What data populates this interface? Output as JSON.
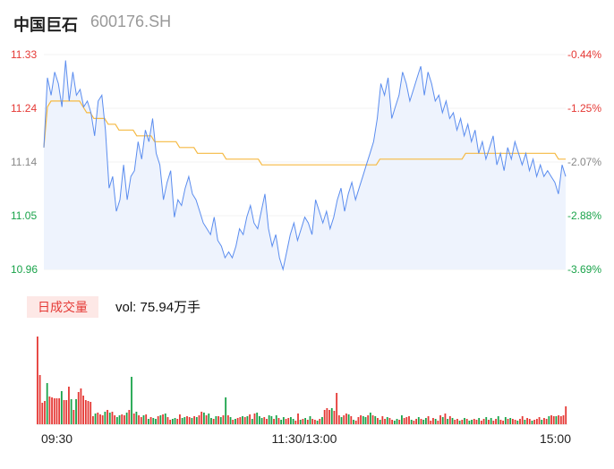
{
  "header": {
    "name": "中国巨石",
    "code": "600176.SH"
  },
  "volume_panel": {
    "tab_label": "日成交量",
    "vol_text": "vol: 75.94万手"
  },
  "colors": {
    "up": "#e53935",
    "down": "#1aa34a",
    "price_line": "#5b8def",
    "avg_line": "#f5b942",
    "area": "#eef3fd"
  },
  "chart_data": [
    {
      "type": "line",
      "title": "",
      "ylim": [
        10.96,
        11.33
      ],
      "y_ticks": [
        "11.33",
        "11.24",
        "11.14",
        "11.05",
        "10.96"
      ],
      "pct_ticks": [
        "-0.44%",
        "-1.25%",
        "-2.07%",
        "-2.88%",
        "-3.69%"
      ],
      "x_ticks": [
        "09:30",
        "11:30/13:00",
        "15:00"
      ],
      "series": [
        {
          "values": [
            11.17,
            11.29,
            11.26,
            11.3,
            11.28,
            11.24,
            11.32,
            11.25,
            11.3,
            11.26,
            11.27,
            11.24,
            11.25,
            11.23,
            11.19,
            11.25,
            11.26,
            11.2,
            11.1,
            11.12,
            11.06,
            11.08,
            11.14,
            11.08,
            11.12,
            11.13,
            11.18,
            11.15,
            11.2,
            11.18,
            11.22,
            11.16,
            11.14,
            11.08,
            11.11,
            11.13,
            11.05,
            11.08,
            11.07,
            11.1,
            11.12,
            11.09,
            11.08,
            11.06,
            11.04,
            11.03,
            11.02,
            11.05,
            11.01,
            11.0,
            10.98,
            10.99,
            10.98,
            11.0,
            11.03,
            11.02,
            11.05,
            11.07,
            11.04,
            11.03,
            11.06,
            11.09,
            11.03,
            11.0,
            11.02,
            10.98,
            10.96,
            10.99,
            11.02,
            11.04,
            11.01,
            11.03,
            11.05,
            11.04,
            11.02,
            11.08,
            11.06,
            11.04,
            11.06,
            11.03,
            11.05,
            11.08,
            11.1,
            11.06,
            11.09,
            11.11,
            11.08,
            11.1,
            11.12,
            11.14,
            11.16,
            11.18,
            11.22,
            11.28,
            11.26,
            11.29,
            11.22,
            11.24,
            11.26,
            11.3,
            11.28,
            11.25,
            11.27,
            11.29,
            11.31,
            11.26,
            11.3,
            11.28,
            11.25,
            11.26,
            11.23,
            11.25,
            11.22,
            11.23,
            11.2,
            11.22,
            11.19,
            11.21,
            11.18,
            11.2,
            11.16,
            11.18,
            11.15,
            11.17,
            11.19,
            11.14,
            11.16,
            11.13,
            11.17,
            11.15,
            11.18,
            11.16,
            11.14,
            11.16,
            11.13,
            11.15,
            11.12,
            11.14,
            11.12,
            11.13,
            11.12,
            11.11,
            11.09,
            11.14,
            11.12
          ],
          "color": "#5b8def"
        },
        {
          "values": [
            11.17,
            11.24,
            11.25,
            11.25,
            11.25,
            11.25,
            11.25,
            11.25,
            11.25,
            11.25,
            11.25,
            11.24,
            11.23,
            11.23,
            11.22,
            11.22,
            11.22,
            11.22,
            11.21,
            11.21,
            11.21,
            11.2,
            11.2,
            11.2,
            11.2,
            11.2,
            11.19,
            11.19,
            11.19,
            11.19,
            11.19,
            11.18,
            11.18,
            11.18,
            11.18,
            11.18,
            11.18,
            11.18,
            11.17,
            11.17,
            11.17,
            11.17,
            11.17,
            11.16,
            11.16,
            11.16,
            11.16,
            11.16,
            11.16,
            11.16,
            11.16,
            11.15,
            11.15,
            11.15,
            11.15,
            11.15,
            11.15,
            11.15,
            11.15,
            11.15,
            11.15,
            11.14,
            11.14,
            11.14,
            11.14,
            11.14,
            11.14,
            11.14,
            11.14,
            11.14,
            11.14,
            11.14,
            11.14,
            11.14,
            11.14,
            11.14,
            11.14,
            11.14,
            11.14,
            11.14,
            11.14,
            11.14,
            11.14,
            11.14,
            11.14,
            11.14,
            11.14,
            11.14,
            11.14,
            11.14,
            11.14,
            11.14,
            11.14,
            11.14,
            11.15,
            11.15,
            11.15,
            11.15,
            11.15,
            11.15,
            11.15,
            11.15,
            11.15,
            11.15,
            11.15,
            11.15,
            11.15,
            11.15,
            11.15,
            11.15,
            11.15,
            11.15,
            11.15,
            11.15,
            11.15,
            11.15,
            11.15,
            11.15,
            11.16,
            11.16,
            11.16,
            11.16,
            11.16,
            11.16,
            11.16,
            11.16,
            11.16,
            11.16,
            11.16,
            11.16,
            11.16,
            11.16,
            11.16,
            11.16,
            11.16,
            11.16,
            11.16,
            11.16,
            11.16,
            11.16,
            11.16,
            11.16,
            11.16,
            11.16,
            11.15,
            11.15,
            11.15
          ],
          "color": "#f5b942"
        }
      ]
    },
    {
      "type": "bar",
      "values": [
        98,
        55,
        24,
        26,
        46,
        31,
        30,
        29,
        29,
        29,
        37,
        27,
        27,
        42,
        28,
        16,
        28,
        36,
        40,
        32,
        27,
        26,
        25,
        9,
        12,
        13,
        11,
        10,
        14,
        16,
        13,
        14,
        10,
        8,
        10,
        11,
        10,
        13,
        16,
        53,
        12,
        14,
        10,
        8,
        10,
        11,
        6,
        8,
        7,
        6,
        9,
        10,
        11,
        12,
        8,
        5,
        6,
        7,
        6,
        11,
        7,
        8,
        9,
        8,
        7,
        9,
        8,
        10,
        14,
        13,
        10,
        12,
        7,
        6,
        9,
        9,
        8,
        10,
        30,
        10,
        8,
        5,
        6,
        7,
        8,
        9,
        8,
        9,
        11,
        6,
        12,
        13,
        9,
        7,
        8,
        6,
        10,
        9,
        6,
        10,
        7,
        5,
        8,
        6,
        7,
        8,
        6,
        4,
        12,
        5,
        6,
        7,
        5,
        9,
        6,
        5,
        4,
        6,
        8,
        16,
        18,
        16,
        18,
        15,
        35,
        10,
        8,
        10,
        12,
        11,
        9,
        5,
        4,
        8,
        10,
        9,
        8,
        10,
        13,
        10,
        9,
        7,
        5,
        9,
        6,
        8,
        7,
        5,
        4,
        6,
        5,
        10,
        7,
        8,
        9,
        5,
        4,
        6,
        8,
        6,
        5,
        7,
        9,
        4,
        7,
        6,
        4,
        10,
        8,
        12,
        6,
        9,
        7,
        5,
        6,
        4,
        5,
        7,
        6,
        4,
        5,
        6,
        5,
        7,
        4,
        6,
        8,
        5,
        7,
        4,
        6,
        9,
        5,
        4,
        8,
        6,
        7,
        6,
        5,
        4,
        6,
        9,
        5,
        7,
        6,
        4,
        5,
        6,
        8,
        5,
        7,
        6,
        9,
        10,
        9,
        9,
        10,
        9,
        10,
        20
      ],
      "up": [
        1,
        1,
        1,
        1,
        0,
        1,
        1,
        1,
        1,
        1,
        0,
        1,
        1,
        1,
        0,
        1,
        0,
        1,
        1,
        1,
        1,
        1,
        1,
        1,
        0,
        1,
        1,
        1,
        0,
        1,
        0,
        1,
        1,
        0,
        0,
        1,
        1,
        0,
        1,
        0,
        1,
        0,
        1,
        1,
        0,
        1,
        0,
        1,
        0,
        0,
        1,
        0,
        1,
        0,
        1,
        1,
        0,
        0,
        1,
        1,
        0,
        0,
        1,
        1,
        0,
        1,
        0,
        1,
        1,
        0,
        1,
        0,
        0,
        1,
        0,
        1,
        0,
        1,
        0,
        1,
        0,
        1,
        0,
        1,
        1,
        0,
        1,
        0,
        1,
        0,
        1,
        0,
        0,
        0,
        1,
        1,
        0,
        0,
        1,
        0,
        1,
        0,
        0,
        1,
        1,
        0,
        0,
        1,
        1,
        0,
        1,
        0,
        1,
        0,
        1,
        1,
        0,
        1,
        0,
        1,
        1,
        1,
        0,
        1,
        1,
        1,
        0,
        1,
        1,
        0,
        1,
        0,
        1,
        1,
        1,
        0,
        0,
        1,
        0,
        1,
        0,
        1,
        0,
        1,
        1,
        0,
        1,
        1,
        0,
        0,
        1,
        0,
        1,
        1,
        1,
        0,
        1,
        1,
        0,
        1,
        0,
        0,
        1,
        1,
        1,
        0,
        1,
        1,
        0,
        1,
        0,
        1,
        0,
        1,
        1,
        0,
        1,
        0,
        1,
        0,
        0,
        1,
        1,
        0,
        1,
        1,
        0,
        1,
        0,
        1,
        1,
        0,
        1,
        1,
        0,
        1,
        0,
        1,
        1,
        0,
        1,
        1,
        0,
        1,
        1,
        0,
        1,
        1,
        1,
        0,
        1,
        1,
        0,
        1,
        1,
        0,
        1,
        1,
        1,
        1,
        1,
        1
      ]
    }
  ]
}
